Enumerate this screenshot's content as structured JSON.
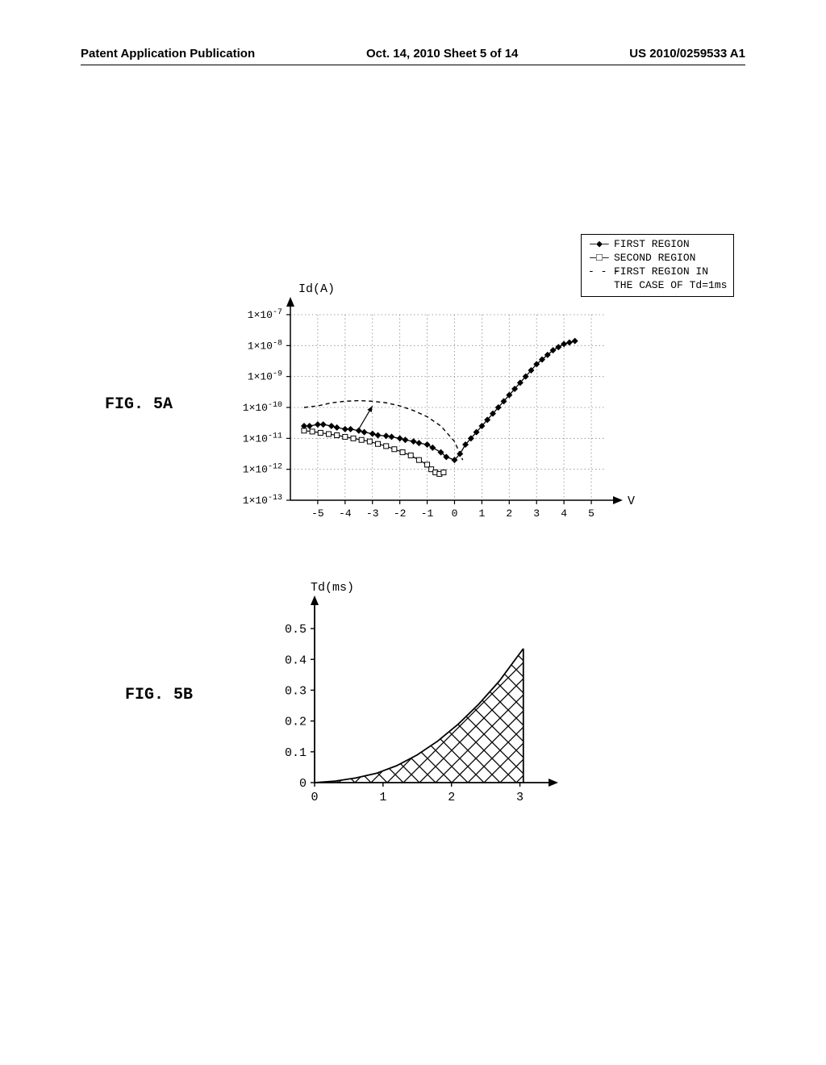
{
  "header": {
    "left": "Patent Application Publication",
    "center": "Oct. 14, 2010  Sheet 5 of 14",
    "right": "US 2010/0259533 A1"
  },
  "figA": {
    "label": "FIG. 5A",
    "type": "scatter-line",
    "yaxis_title": "Id(A)",
    "xaxis_title": "V",
    "xlim": [
      -6,
      5.5
    ],
    "ylim_exp": [
      -13,
      -7
    ],
    "y_ticks": [
      "1×10⁻⁷",
      "1×10⁻⁸",
      "1×10⁻⁹",
      "1×10⁻¹⁰",
      "1×10⁻¹¹",
      "1×10⁻¹²",
      "1×10⁻¹³"
    ],
    "y_tick_exp": [
      -7,
      -8,
      -9,
      -10,
      -11,
      -12,
      -13
    ],
    "x_ticks": [
      -5,
      -4,
      -3,
      -2,
      -1,
      0,
      1,
      2,
      3,
      4,
      5
    ],
    "legend": [
      {
        "marker": "◆",
        "line": "solid",
        "label": "FIRST REGION"
      },
      {
        "marker": "□",
        "line": "solid",
        "label": "SECOND REGION"
      },
      {
        "marker": "",
        "line": "dashed",
        "label": "FIRST REGION IN"
      },
      {
        "marker": "",
        "line": "none",
        "label": "THE CASE OF Td=1ms"
      }
    ],
    "series_first": [
      [
        -5.5,
        -10.6
      ],
      [
        -5.3,
        -10.6
      ],
      [
        -5.0,
        -10.55
      ],
      [
        -4.8,
        -10.55
      ],
      [
        -4.5,
        -10.6
      ],
      [
        -4.3,
        -10.65
      ],
      [
        -4.0,
        -10.7
      ],
      [
        -3.8,
        -10.7
      ],
      [
        -3.5,
        -10.75
      ],
      [
        -3.3,
        -10.8
      ],
      [
        -3.0,
        -10.85
      ],
      [
        -2.8,
        -10.9
      ],
      [
        -2.5,
        -10.92
      ],
      [
        -2.3,
        -10.95
      ],
      [
        -2.0,
        -11.0
      ],
      [
        -1.8,
        -11.05
      ],
      [
        -1.5,
        -11.1
      ],
      [
        -1.3,
        -11.15
      ],
      [
        -1.0,
        -11.2
      ],
      [
        -0.8,
        -11.3
      ],
      [
        -0.5,
        -11.45
      ],
      [
        -0.3,
        -11.6
      ],
      [
        0,
        -11.7
      ],
      [
        0.2,
        -11.5
      ],
      [
        0.4,
        -11.2
      ],
      [
        0.6,
        -11.0
      ],
      [
        0.8,
        -10.8
      ],
      [
        1.0,
        -10.6
      ],
      [
        1.2,
        -10.4
      ],
      [
        1.4,
        -10.2
      ],
      [
        1.6,
        -10.0
      ],
      [
        1.8,
        -9.8
      ],
      [
        2.0,
        -9.6
      ],
      [
        2.2,
        -9.4
      ],
      [
        2.4,
        -9.2
      ],
      [
        2.6,
        -9.0
      ],
      [
        2.8,
        -8.8
      ],
      [
        3.0,
        -8.6
      ],
      [
        3.2,
        -8.45
      ],
      [
        3.4,
        -8.3
      ],
      [
        3.6,
        -8.15
      ],
      [
        3.8,
        -8.05
      ],
      [
        4.0,
        -7.95
      ],
      [
        4.2,
        -7.9
      ],
      [
        4.4,
        -7.85
      ]
    ],
    "series_second": [
      [
        -5.5,
        -10.75
      ],
      [
        -5.2,
        -10.78
      ],
      [
        -4.9,
        -10.82
      ],
      [
        -4.6,
        -10.86
      ],
      [
        -4.3,
        -10.9
      ],
      [
        -4.0,
        -10.95
      ],
      [
        -3.7,
        -11.0
      ],
      [
        -3.4,
        -11.05
      ],
      [
        -3.1,
        -11.1
      ],
      [
        -2.8,
        -11.18
      ],
      [
        -2.5,
        -11.25
      ],
      [
        -2.2,
        -11.35
      ],
      [
        -1.9,
        -11.45
      ],
      [
        -1.6,
        -11.55
      ],
      [
        -1.3,
        -11.7
      ],
      [
        -1.0,
        -11.85
      ],
      [
        -0.85,
        -12.0
      ],
      [
        -0.7,
        -12.1
      ],
      [
        -0.55,
        -12.15
      ],
      [
        -0.4,
        -12.1
      ]
    ],
    "series_dashed": [
      [
        -5.5,
        -10.0
      ],
      [
        -5.0,
        -9.95
      ],
      [
        -4.5,
        -9.85
      ],
      [
        -4.0,
        -9.8
      ],
      [
        -3.5,
        -9.78
      ],
      [
        -3.0,
        -9.8
      ],
      [
        -2.5,
        -9.85
      ],
      [
        -2.0,
        -9.95
      ],
      [
        -1.5,
        -10.1
      ],
      [
        -1.0,
        -10.3
      ],
      [
        -0.5,
        -10.6
      ],
      [
        0,
        -11.1
      ],
      [
        0.3,
        -11.7
      ]
    ],
    "arrow_tail": [
      -3.5,
      -10.7
    ],
    "arrow_head": [
      -3.0,
      -9.95
    ],
    "colors": {
      "axis": "#000000",
      "grid": "#888888",
      "first": "#000000",
      "second": "#000000",
      "dashed": "#000000"
    }
  },
  "figB": {
    "label": "FIG. 5B",
    "type": "area",
    "yaxis_title": "Td(ms)",
    "xlim": [
      0,
      3.3
    ],
    "ylim": [
      0,
      0.55
    ],
    "y_ticks": [
      0,
      0.1,
      0.2,
      0.3,
      0.4,
      0.5
    ],
    "x_ticks": [
      0,
      1,
      2,
      3
    ],
    "curve": [
      [
        0,
        0
      ],
      [
        0.3,
        0.005
      ],
      [
        0.6,
        0.015
      ],
      [
        0.9,
        0.03
      ],
      [
        1.2,
        0.055
      ],
      [
        1.5,
        0.09
      ],
      [
        1.8,
        0.135
      ],
      [
        2.1,
        0.19
      ],
      [
        2.4,
        0.255
      ],
      [
        2.7,
        0.33
      ],
      [
        3.0,
        0.42
      ],
      [
        3.05,
        0.435
      ]
    ],
    "hatch_angle": 45,
    "colors": {
      "axis": "#000000",
      "line": "#000000",
      "hatch": "#000000"
    }
  }
}
